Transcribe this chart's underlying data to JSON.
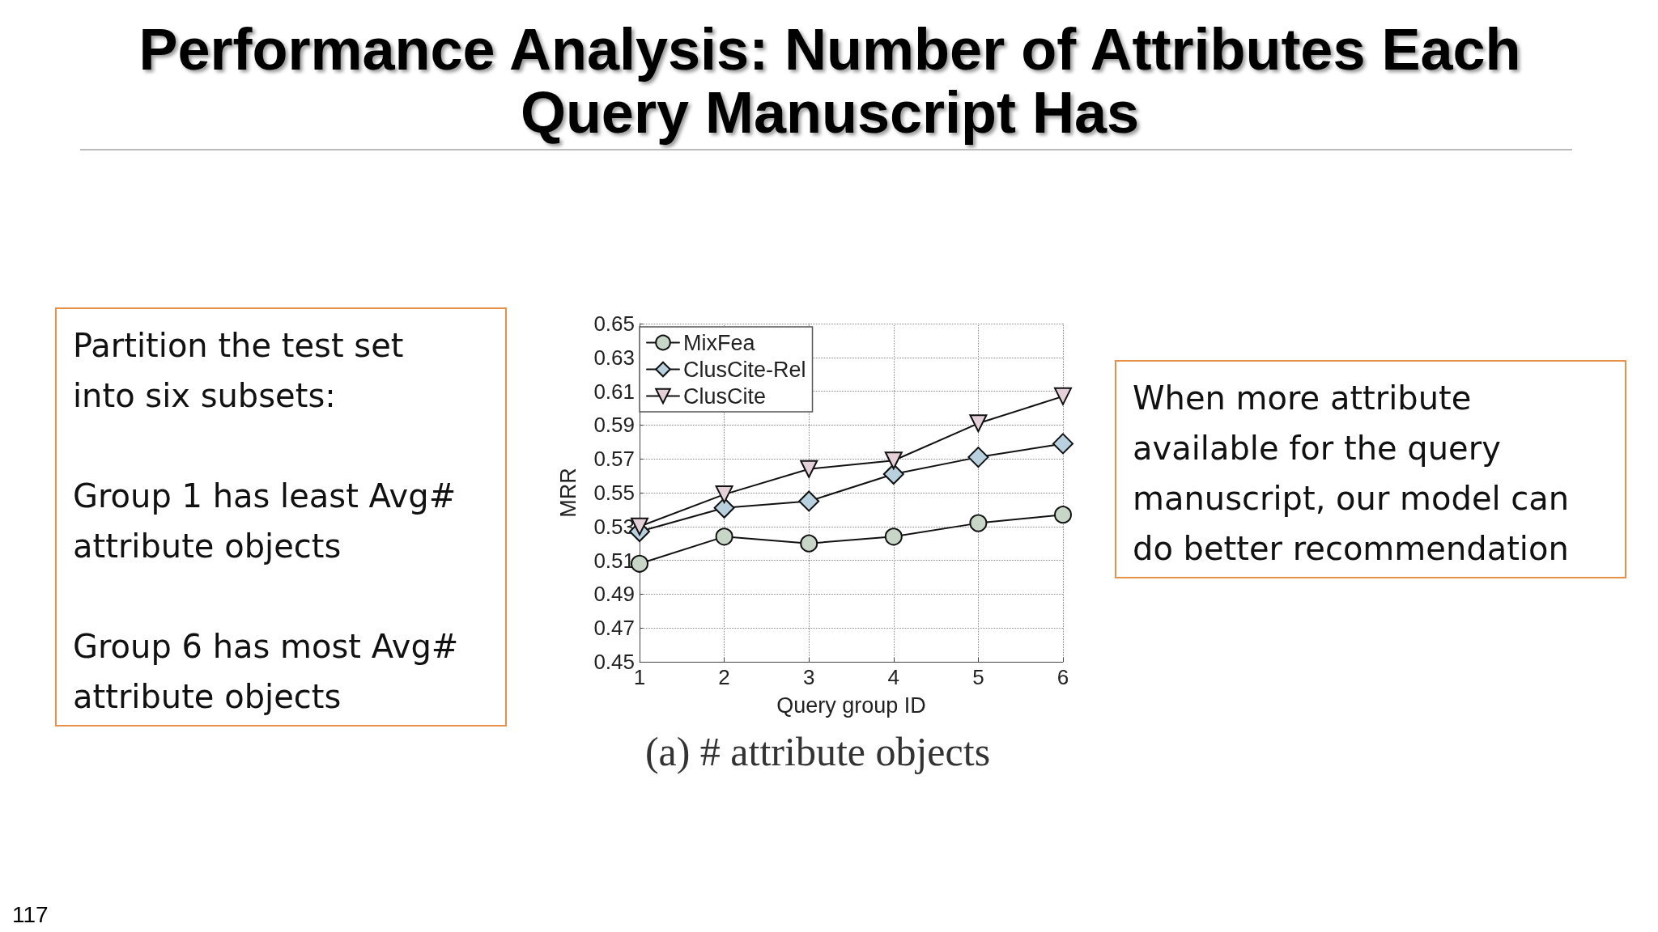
{
  "chart_data": {
    "type": "line",
    "title": "Performance Analysis: Number of Attributes Each Query Manuscript Has",
    "xlabel": "Query group ID",
    "ylabel": "MRR",
    "x": [
      1,
      2,
      3,
      4,
      5,
      6
    ],
    "series": [
      {
        "name": "MixFea",
        "color": "#c8d6c8",
        "marker": "circle",
        "values": [
          0.508,
          0.524,
          0.52,
          0.524,
          0.532,
          0.537
        ]
      },
      {
        "name": "ClusCite-Rel",
        "color": "#b9d0df",
        "marker": "diamond",
        "values": [
          0.527,
          0.541,
          0.545,
          0.561,
          0.571,
          0.579
        ]
      },
      {
        "name": "ClusCite",
        "color": "#e4d0d8",
        "marker": "triangle",
        "values": [
          0.53,
          0.549,
          0.564,
          0.569,
          0.591,
          0.607
        ]
      }
    ],
    "xlim": [
      1,
      6
    ],
    "xticks": [
      1,
      2,
      3,
      4,
      5,
      6
    ],
    "ylim": [
      0.45,
      0.65
    ],
    "yticks": [
      0.45,
      0.47,
      0.49,
      0.51,
      0.53,
      0.55,
      0.57,
      0.59,
      0.61,
      0.63,
      0.65
    ],
    "grid": true,
    "legend": "top left",
    "line_style": "solid",
    "annotations": [
      "Partition the test set\ninto six subsets:\n\nGroup 1 has least Avg#\nattribute objects\n\nGroup 6 has most Avg#\nattribute objects",
      "When more attribute available for the query manuscript, our model can do better recommendation",
      "(a) # attribute objects",
      "117"
    ]
  }
}
